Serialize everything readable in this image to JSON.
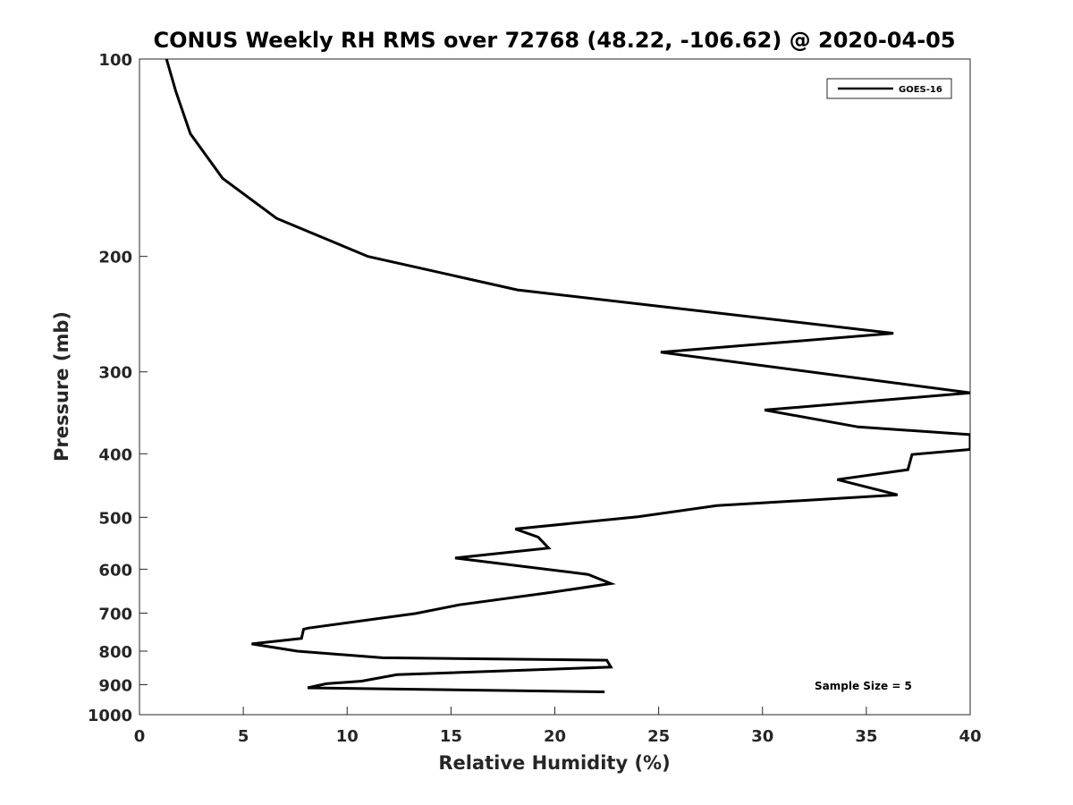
{
  "chart_data": {
    "type": "line",
    "title": "CONUS Weekly RH RMS over 72768 (48.22, -106.62) @ 2020-04-05",
    "xlabel": "Relative Humidity (%)",
    "ylabel": "Pressure (mb)",
    "xlim": [
      0,
      40
    ],
    "ylim": [
      100,
      1000
    ],
    "y_scale": "log",
    "y_reversed": true,
    "x_ticks": [
      0,
      5,
      10,
      15,
      20,
      25,
      30,
      35,
      40
    ],
    "y_ticks": [
      100,
      200,
      300,
      400,
      500,
      600,
      700,
      800,
      900,
      1000
    ],
    "grid": false,
    "legend_position": "top-right",
    "annotation": "Sample Size = 5",
    "series": [
      {
        "name": "GOES-16",
        "color": "#000000",
        "x": [
          1.3,
          1.75,
          2.45,
          4.0,
          6.6,
          11.0,
          18.2,
          36.3,
          25.1,
          40.0,
          30.1,
          34.6,
          40.0,
          40.0,
          37.2,
          37.0,
          33.6,
          36.5,
          27.8,
          24.0,
          18.1,
          19.2,
          19.7,
          15.2,
          21.6,
          22.7,
          19.8,
          15.4,
          13.3,
          8.1,
          7.9,
          7.8,
          5.4,
          7.6,
          11.7,
          22.5,
          22.7,
          12.4,
          10.7,
          9.0,
          8.1,
          22.4
        ],
        "y": [
          100,
          112,
          130,
          152,
          175,
          200,
          225,
          262,
          280,
          323,
          343,
          364,
          374,
          394,
          401,
          423,
          438,
          462,
          480,
          499,
          521,
          536,
          557,
          577,
          611,
          631,
          651,
          680,
          701,
          738,
          741,
          765,
          780,
          800,
          819,
          826,
          846,
          869,
          889,
          897,
          910,
          923
        ]
      }
    ]
  }
}
